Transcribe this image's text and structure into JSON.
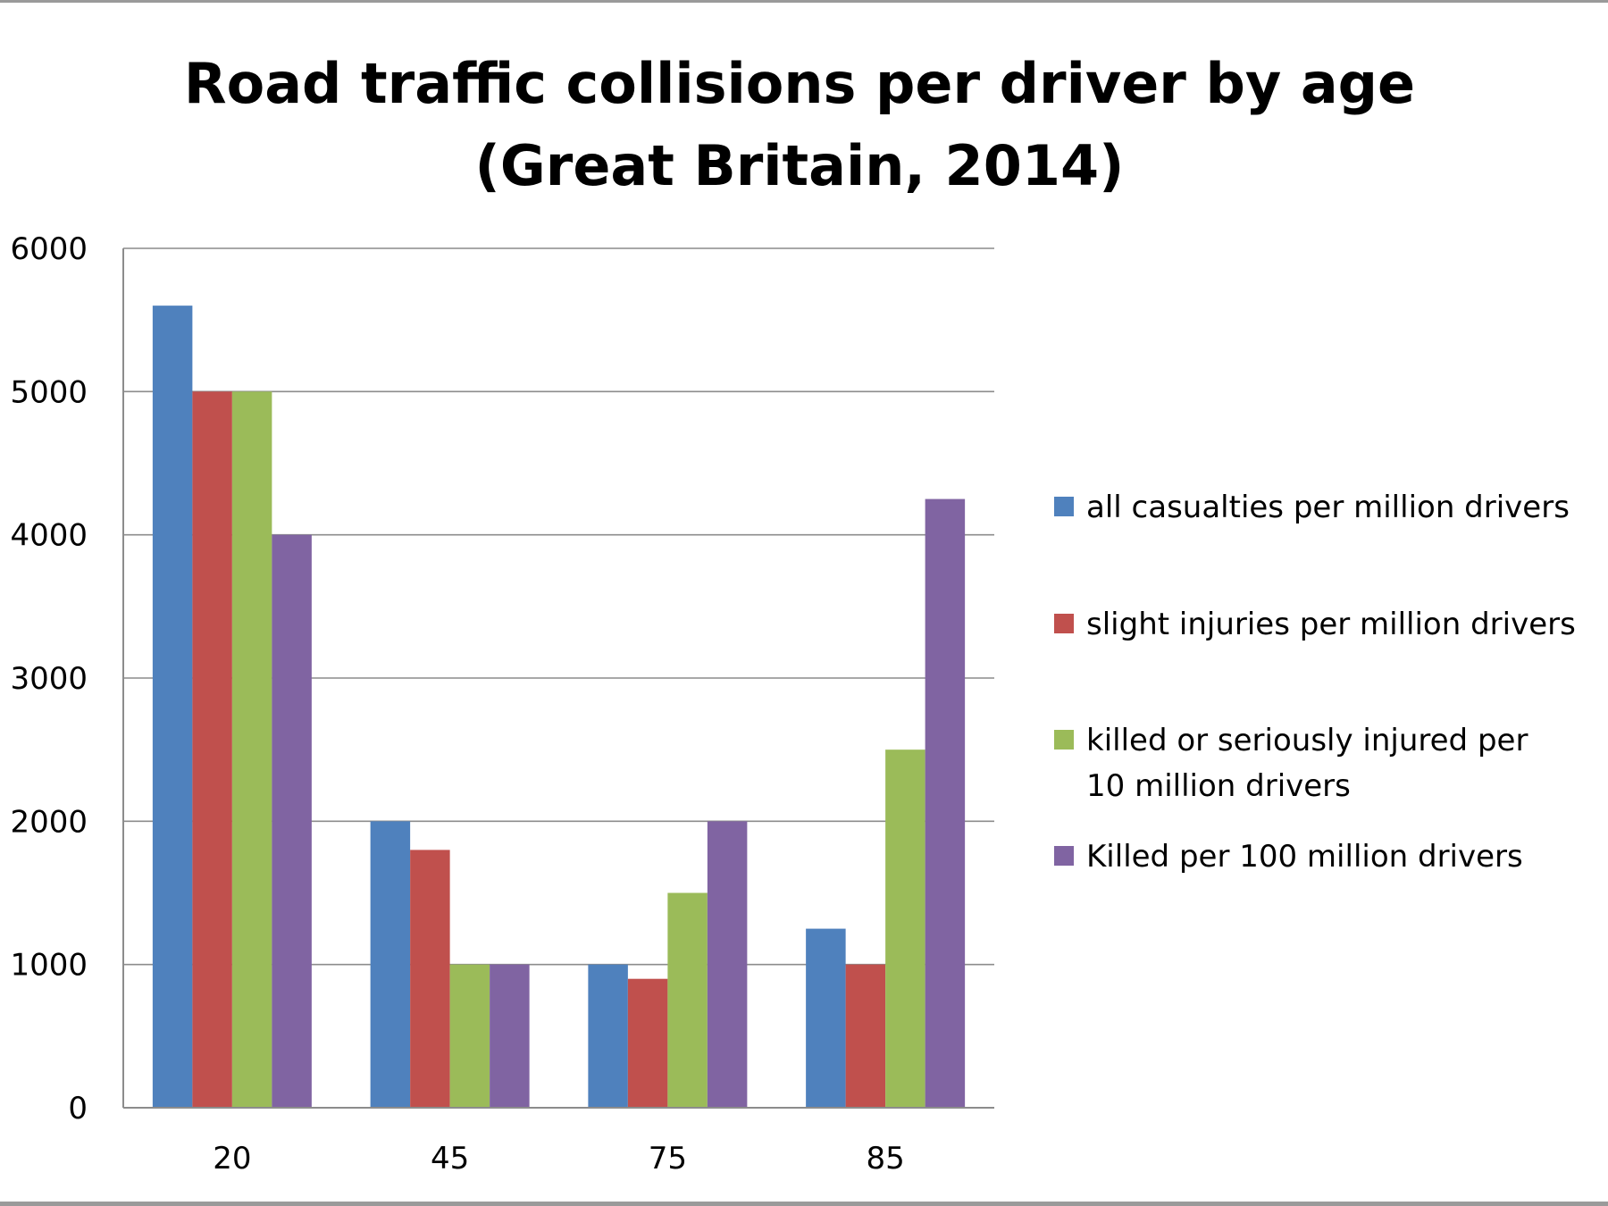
{
  "chart_data": {
    "type": "bar",
    "title_lines": [
      "Road traffic collisions per driver by age",
      "(Great Britain, 2014)"
    ],
    "xlabel": "",
    "ylabel": "",
    "categories": [
      "20",
      "45",
      "75",
      "85"
    ],
    "ylim": [
      0,
      6000
    ],
    "yticks": [
      0,
      1000,
      2000,
      3000,
      4000,
      5000,
      6000
    ],
    "grid": true,
    "legend_position": "right",
    "series": [
      {
        "name": "all casualties per million drivers",
        "color": "#4F81BD",
        "values": [
          5600,
          2000,
          1000,
          1250
        ]
      },
      {
        "name": "slight injuries per million drivers",
        "color": "#C0504D",
        "values": [
          5000,
          1800,
          900,
          1000
        ]
      },
      {
        "name": "killed or seriously injured per 10 million drivers",
        "color": "#9BBB59",
        "values": [
          5000,
          1000,
          1500,
          2500
        ]
      },
      {
        "name": "Killed per 100 million drivers",
        "color": "#8064A2",
        "values": [
          4000,
          1000,
          2000,
          4250
        ]
      }
    ]
  }
}
